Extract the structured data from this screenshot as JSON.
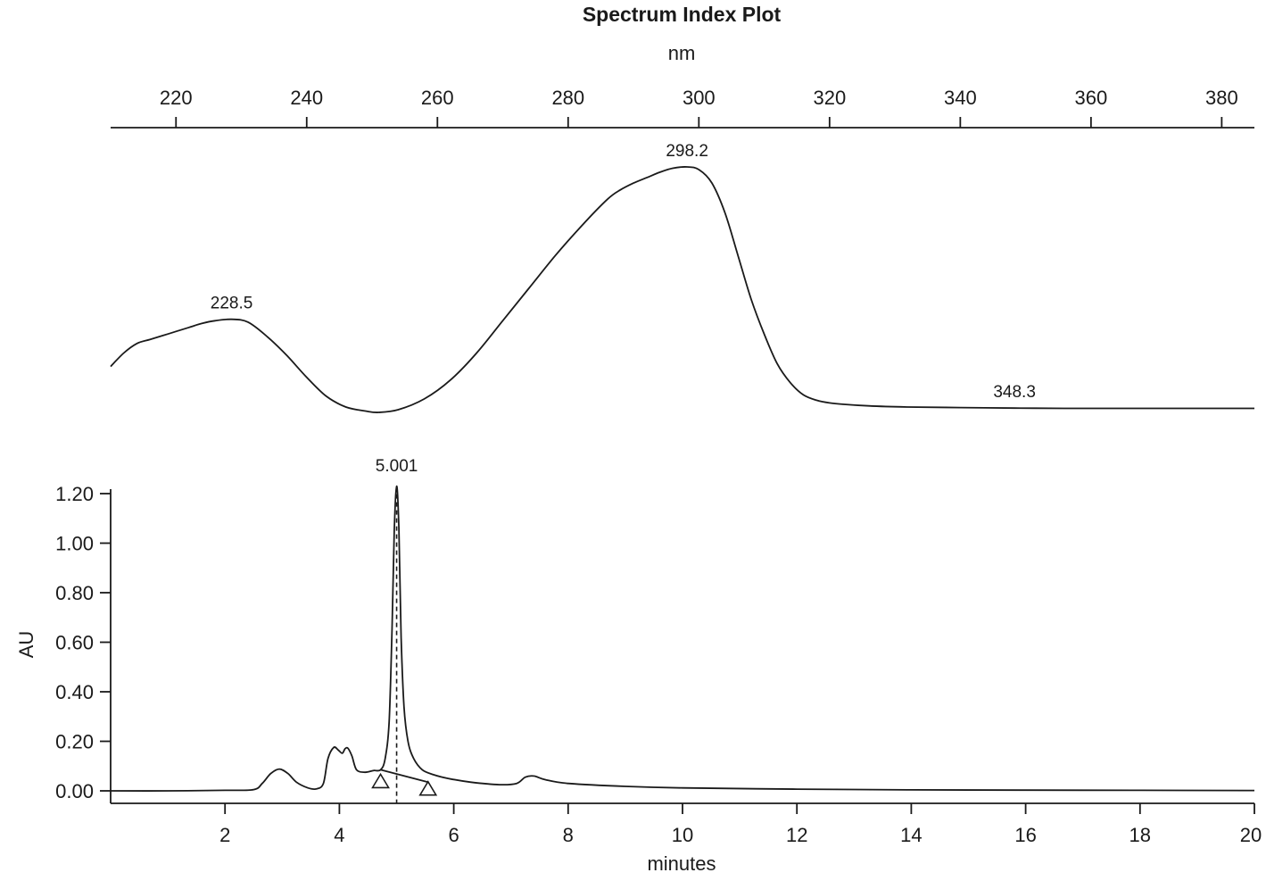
{
  "chart_data": [
    {
      "type": "line",
      "title": "Spectrum Index Plot",
      "xlabel": "nm",
      "ylabel": "",
      "x_ticks": [
        220,
        240,
        260,
        280,
        300,
        320,
        340,
        360,
        380
      ],
      "xlim": [
        210,
        385
      ],
      "grid": false,
      "series": [
        {
          "x": [
            210,
            212,
            214,
            216,
            218,
            220,
            222,
            224,
            226,
            228.5,
            231,
            234,
            237,
            240,
            243,
            246,
            249,
            251,
            254,
            258,
            262,
            266,
            270,
            274,
            278,
            282,
            286,
            288,
            290,
            292,
            294,
            296,
            298.2,
            300,
            302,
            304,
            306,
            308,
            310,
            312,
            314,
            316,
            318,
            320,
            322,
            326,
            332,
            340,
            348.3,
            356,
            366,
            376,
            385
          ],
          "y": [
            0.17,
            0.22,
            0.255,
            0.27,
            0.285,
            0.3,
            0.315,
            0.33,
            0.34,
            0.345,
            0.335,
            0.28,
            0.21,
            0.13,
            0.06,
            0.02,
            0.005,
            0.0,
            0.01,
            0.05,
            0.12,
            0.22,
            0.34,
            0.46,
            0.58,
            0.69,
            0.79,
            0.825,
            0.85,
            0.87,
            0.89,
            0.905,
            0.91,
            0.9,
            0.85,
            0.74,
            0.58,
            0.42,
            0.29,
            0.18,
            0.11,
            0.065,
            0.045,
            0.035,
            0.03,
            0.024,
            0.02,
            0.018,
            0.016,
            0.015,
            0.015,
            0.015,
            0.015
          ]
        }
      ],
      "annotations": [
        {
          "x": 228.5,
          "text": "228.5"
        },
        {
          "x": 298.2,
          "text": "298.2"
        },
        {
          "x": 348.3,
          "text": "348.3"
        }
      ]
    },
    {
      "type": "line",
      "title": "",
      "xlabel": "minutes",
      "ylabel": "AU",
      "xlim": [
        0,
        20
      ],
      "ylim": [
        -0.05,
        1.25
      ],
      "x_ticks": [
        2,
        4,
        6,
        8,
        10,
        12,
        14,
        16,
        18,
        20
      ],
      "y_ticks": [
        "0.00",
        "0.20",
        "0.40",
        "0.60",
        "0.80",
        "1.00",
        "1.20"
      ],
      "grid": false,
      "series": [
        {
          "x": [
            0,
            1,
            2,
            2.5,
            2.65,
            2.8,
            2.95,
            3.1,
            3.25,
            3.45,
            3.6,
            3.72,
            3.8,
            3.9,
            3.98,
            4.05,
            4.1,
            4.15,
            4.22,
            4.3,
            4.45,
            4.6,
            4.72,
            4.8,
            4.87,
            4.92,
            4.96,
            5.001,
            5.04,
            5.08,
            5.13,
            5.2,
            5.3,
            5.45,
            5.65,
            5.9,
            6.3,
            6.8,
            7.1,
            7.25,
            7.4,
            7.6,
            8.0,
            9,
            10,
            12,
            14,
            16,
            18,
            20
          ],
          "y": [
            0.0,
            0.0,
            0.002,
            0.005,
            0.03,
            0.07,
            0.088,
            0.07,
            0.035,
            0.012,
            0.008,
            0.03,
            0.13,
            0.175,
            0.165,
            0.152,
            0.17,
            0.172,
            0.14,
            0.085,
            0.075,
            0.082,
            0.085,
            0.13,
            0.28,
            0.65,
            1.05,
            1.23,
            1.06,
            0.62,
            0.34,
            0.2,
            0.13,
            0.085,
            0.065,
            0.05,
            0.035,
            0.025,
            0.03,
            0.055,
            0.06,
            0.045,
            0.03,
            0.018,
            0.012,
            0.007,
            0.004,
            0.003,
            0.002,
            0.0015
          ]
        }
      ],
      "baseline": {
        "x": [
          4.72,
          5.55
        ],
        "y": [
          0.085,
          0.035
        ]
      },
      "markers": [
        {
          "shape": "triangle",
          "x": 4.72,
          "y": 0.04
        },
        {
          "shape": "triangle",
          "x": 5.55,
          "y": 0.01
        }
      ],
      "vline": {
        "x": 5.001
      },
      "annotations": [
        {
          "x": 5.001,
          "text": "5.001"
        }
      ]
    }
  ]
}
